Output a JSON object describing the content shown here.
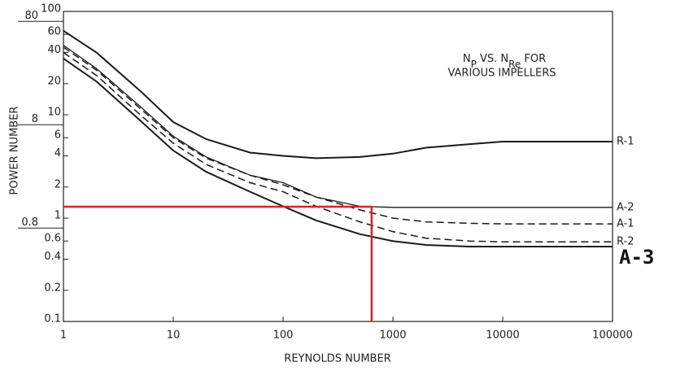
{
  "chart_data": {
    "type": "line",
    "title_line1": [
      "N",
      "P",
      " VS. N",
      "Re",
      " FOR"
    ],
    "title_line2": "VARIOUS IMPELLERS",
    "x_label": "REYNOLDS NUMBER",
    "y_label": "POWER NUMBER",
    "log_x": true,
    "log_y": true,
    "xlim": [
      1,
      100000
    ],
    "ylim": [
      0.1,
      100
    ],
    "xticks": [
      1,
      10,
      100,
      1000,
      10000,
      100000
    ],
    "yticks": [
      0.1,
      0.2,
      0.4,
      0.6,
      1,
      2,
      4,
      6,
      10,
      20,
      40,
      60,
      100
    ],
    "yticks_outer": [
      0.8,
      8,
      80
    ],
    "x": [
      1,
      2,
      5,
      10,
      20,
      50,
      100,
      200,
      500,
      1000,
      2000,
      5000,
      10000,
      100000
    ],
    "series": [
      {
        "name": "R-1",
        "color": "#1a1a1a",
        "dash": false,
        "width": 2,
        "label_bold": false,
        "values": [
          65,
          40,
          17,
          8.5,
          5.8,
          4.3,
          4.0,
          3.8,
          3.9,
          4.2,
          4.8,
          5.2,
          5.5,
          5.5
        ]
      },
      {
        "name": "A-2",
        "color": "#1a1a1a",
        "dash": false,
        "width": 1.3,
        "label_bold": false,
        "values": [
          47,
          28,
          12,
          6.2,
          3.9,
          2.6,
          2.2,
          1.6,
          1.3,
          1.27,
          1.27,
          1.27,
          1.27,
          1.27
        ]
      },
      {
        "name": "A-1",
        "color": "#1a1a1a",
        "dash": true,
        "width": 1.5,
        "label_bold": false,
        "values": [
          45,
          27,
          11.5,
          6,
          3.8,
          2.6,
          2.1,
          1.6,
          1.2,
          1.0,
          0.92,
          0.89,
          0.88,
          0.88
        ]
      },
      {
        "name": "R-2",
        "color": "#1a1a1a",
        "dash": true,
        "width": 1.5,
        "label_bold": false,
        "values": [
          40,
          24,
          10,
          5.3,
          3.3,
          2.2,
          1.8,
          1.3,
          0.92,
          0.74,
          0.64,
          0.6,
          0.59,
          0.59
        ]
      },
      {
        "name": "A-3",
        "color": "#1a1a1a",
        "dash": false,
        "width": 2,
        "label_bold": true,
        "values": [
          35,
          21,
          8.8,
          4.5,
          2.8,
          1.8,
          1.3,
          0.95,
          0.7,
          0.6,
          0.55,
          0.53,
          0.53,
          0.53
        ]
      }
    ],
    "reference": {
      "x": 640,
      "y": 1.29,
      "color": "#e02020"
    }
  }
}
